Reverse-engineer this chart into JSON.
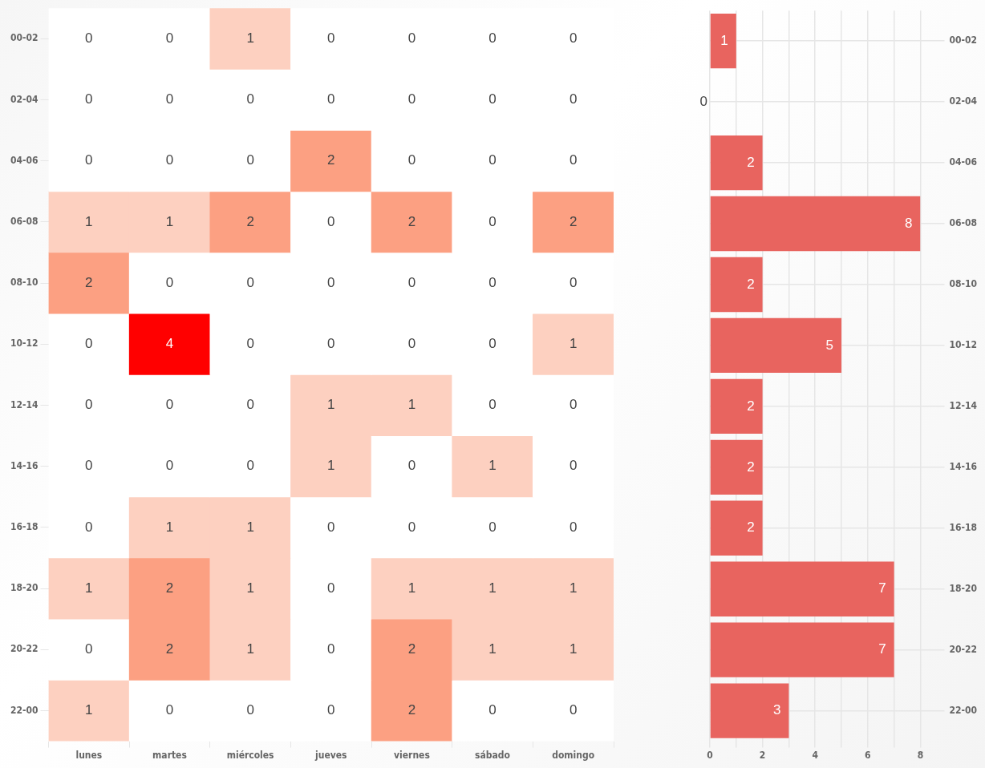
{
  "chart_data": [
    {
      "type": "heatmap",
      "categories": [
        "lunes",
        "martes",
        "miércoles",
        "jueves",
        "viernes",
        "sábado",
        "domingo"
      ],
      "y_categories": [
        "00-02",
        "02-04",
        "04-06",
        "06-08",
        "08-10",
        "10-12",
        "12-14",
        "14-16",
        "16-18",
        "18-20",
        "20-22",
        "22-00"
      ],
      "cells": [
        [
          0,
          0,
          1,
          0,
          0,
          0,
          0
        ],
        [
          0,
          0,
          0,
          0,
          0,
          0,
          0
        ],
        [
          0,
          0,
          0,
          2,
          0,
          0,
          0
        ],
        [
          1,
          1,
          2,
          0,
          2,
          0,
          2
        ],
        [
          2,
          0,
          0,
          0,
          0,
          0,
          0
        ],
        [
          0,
          4,
          0,
          0,
          0,
          0,
          1
        ],
        [
          0,
          0,
          0,
          1,
          1,
          0,
          0
        ],
        [
          0,
          0,
          0,
          1,
          0,
          1,
          0
        ],
        [
          0,
          1,
          1,
          0,
          0,
          0,
          0
        ],
        [
          1,
          2,
          1,
          0,
          1,
          1,
          1
        ],
        [
          0,
          2,
          1,
          0,
          2,
          1,
          1
        ],
        [
          1,
          0,
          0,
          0,
          2,
          0,
          0
        ]
      ],
      "data_labels": true,
      "grid": false,
      "legend": false
    },
    {
      "type": "bar",
      "orientation": "horizontal",
      "categories": [
        "00-02",
        "02-04",
        "04-06",
        "06-08",
        "08-10",
        "10-12",
        "12-14",
        "14-16",
        "16-18",
        "18-20",
        "20-22",
        "22-00"
      ],
      "values": [
        1,
        0,
        2,
        8,
        2,
        5,
        2,
        2,
        2,
        7,
        7,
        3
      ],
      "color": "#e8645f",
      "xlim": [
        0,
        8
      ],
      "xticks": [
        0,
        {
          "value": 1,
          "label": null
        },
        2,
        {
          "value": 3,
          "label": null
        },
        4,
        {
          "value": 5,
          "label": null
        },
        6,
        {
          "value": 7,
          "label": null
        },
        8
      ],
      "data_labels": true,
      "grid": true,
      "legend": false
    }
  ]
}
